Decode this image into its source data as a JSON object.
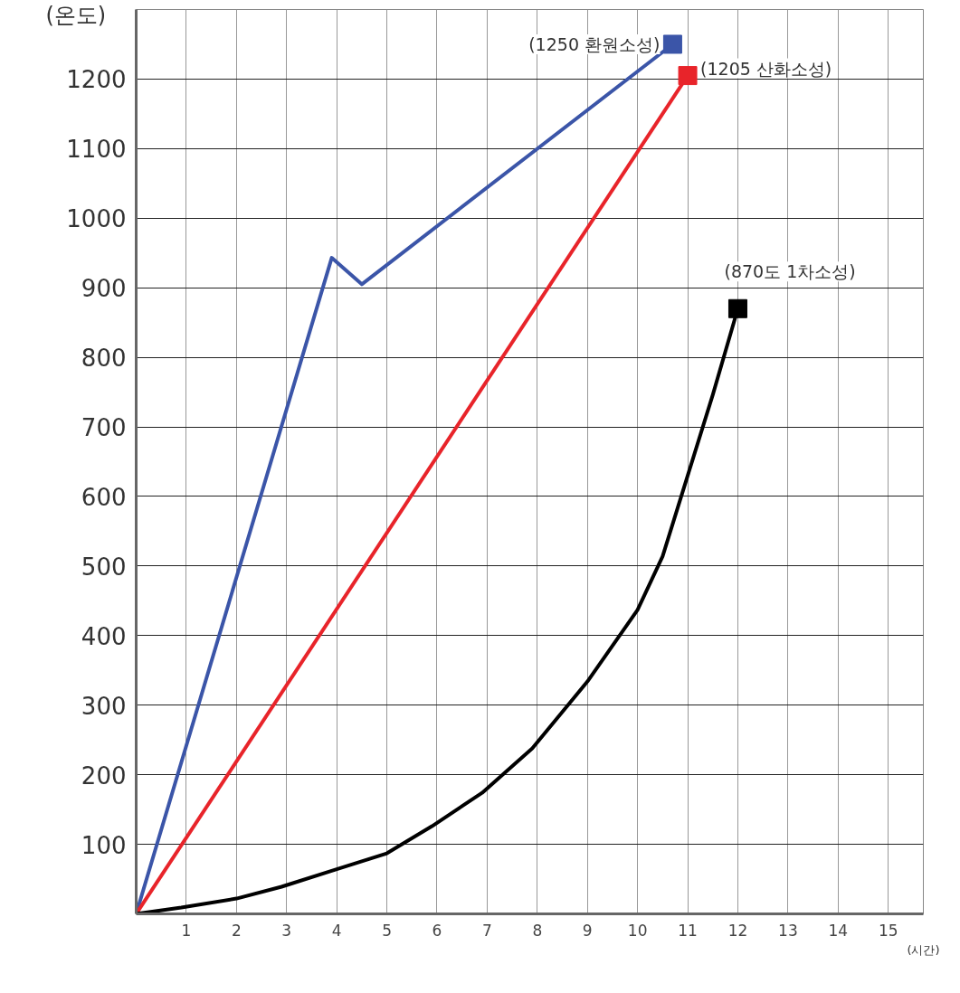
{
  "chart_data": {
    "type": "line",
    "xlabel": "(시간)",
    "ylabel": "(온도)",
    "xlim": [
      0,
      15.7
    ],
    "ylim": [
      0,
      1300
    ],
    "xticks": [
      1,
      2,
      3,
      4,
      5,
      6,
      7,
      8,
      9,
      10,
      11,
      12,
      13,
      14,
      15
    ],
    "yticks": [
      100,
      200,
      300,
      400,
      500,
      600,
      700,
      800,
      900,
      1000,
      1100,
      1200
    ],
    "grid": true,
    "series": [
      {
        "color": "#3b55a8",
        "x": [
          0,
          3.9,
          4.5,
          10.7
        ],
        "values": [
          0,
          943,
          905,
          1250
        ]
      },
      {
        "color": "#e8242a",
        "x": [
          0,
          11.0
        ],
        "values": [
          0,
          1205
        ]
      },
      {
        "color": "#000000",
        "x": [
          0,
          0.9,
          2,
          2.9,
          3.9,
          5,
          5.9,
          6.9,
          7.9,
          9,
          10,
          10.5,
          11,
          11.5,
          12
        ],
        "values": [
          0,
          9,
          22,
          39,
          62,
          87,
          126,
          174,
          238,
          334,
          437,
          514,
          630,
          746,
          870
        ]
      },
      {
        "type": "scatter",
        "marker": "square",
        "color": "#3b55a8",
        "x": [
          10.7
        ],
        "values": [
          1250
        ]
      },
      {
        "type": "scatter",
        "marker": "square",
        "color": "#e8242a",
        "x": [
          11.0
        ],
        "values": [
          1205
        ]
      },
      {
        "type": "scatter",
        "marker": "square",
        "color": "#000000",
        "x": [
          12
        ],
        "values": [
          870
        ]
      }
    ],
    "annotations": [
      {
        "text": "(1250 환원소성)",
        "x": 10.7,
        "y": 1250
      },
      {
        "text": "(1205 산화소성)",
        "x": 11.0,
        "y": 1205
      },
      {
        "text": "(870도 1차소성)",
        "x": 12,
        "y": 870
      }
    ]
  }
}
